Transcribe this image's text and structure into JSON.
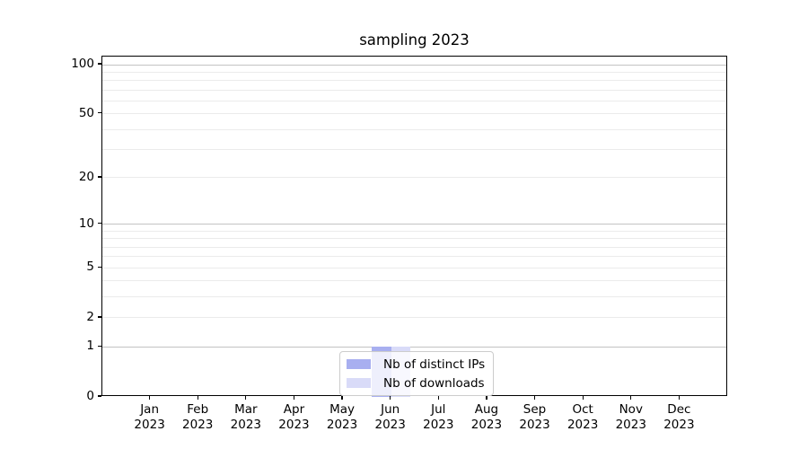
{
  "figure": {
    "background": "#ffffff"
  },
  "chart_data": {
    "type": "bar",
    "title": "sampling 2023",
    "categories": [
      "Jan",
      "Feb",
      "Mar",
      "Apr",
      "May",
      "Jun",
      "Jul",
      "Aug",
      "Sep",
      "Oct",
      "Nov",
      "Dec"
    ],
    "category_year_line": "2023",
    "series": [
      {
        "name": "Nb of distinct IPs",
        "color": "#a8aff0",
        "values": [
          0,
          0,
          0,
          0,
          0,
          1,
          0,
          0,
          0,
          0,
          0,
          0
        ]
      },
      {
        "name": "Nb of downloads",
        "color": "#d9dbf8",
        "values": [
          0,
          0,
          0,
          0,
          0,
          1,
          0,
          0,
          0,
          0,
          0,
          0
        ]
      }
    ],
    "xlabel": "",
    "ylabel": "",
    "yscale": "log1p",
    "ylim": [
      0,
      112
    ],
    "y_ticks_labeled": [
      0,
      1,
      2,
      5,
      10,
      20,
      50,
      100
    ],
    "y_gridlines_major": [
      1,
      10,
      100
    ],
    "y_gridlines_minor": [
      2,
      3,
      4,
      5,
      6,
      7,
      8,
      9,
      20,
      30,
      40,
      50,
      60,
      70,
      80,
      90
    ],
    "grid": "horizontal",
    "bar_width_fraction": 0.4,
    "legend": {
      "position": "lower center",
      "items": [
        "Nb of distinct IPs",
        "Nb of downloads"
      ]
    },
    "colors": {
      "major_grid": "#c3c3c3",
      "minor_grid": "#ebebeb",
      "spine": "#000000",
      "text": "#000000",
      "legend_border": "#cccccc"
    }
  }
}
